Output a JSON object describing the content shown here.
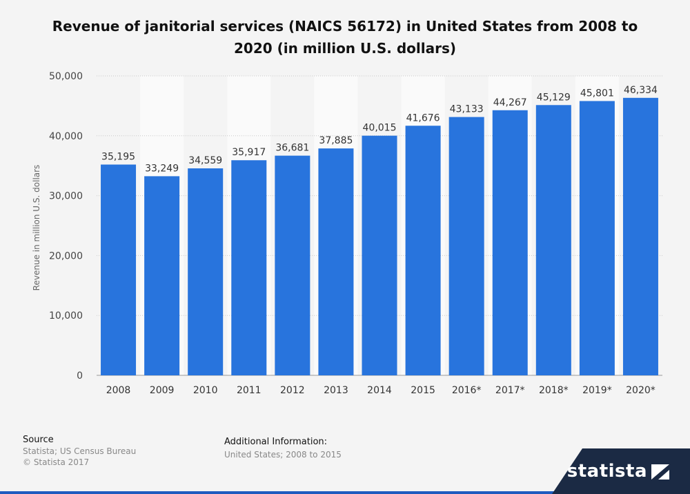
{
  "chart_data": {
    "type": "bar",
    "title": "Revenue of janitorial services (NAICS 56172) in United States from 2008 to 2020 (in million U.S. dollars)",
    "ylabel": "Revenue in million U.S. dollars",
    "xlabel": "",
    "categories": [
      "2008",
      "2009",
      "2010",
      "2011",
      "2012",
      "2013",
      "2014",
      "2015",
      "2016*",
      "2017*",
      "2018*",
      "2019*",
      "2020*"
    ],
    "values": [
      35195,
      33249,
      34559,
      35917,
      36681,
      37885,
      40015,
      41676,
      43133,
      44267,
      45129,
      45801,
      46334
    ],
    "value_labels": [
      "35,195",
      "33,249",
      "34,559",
      "35,917",
      "36,681",
      "37,885",
      "40,015",
      "41,676",
      "43,133",
      "44,267",
      "45,129",
      "45,801",
      "46,334"
    ],
    "ylim": [
      0,
      50000
    ],
    "yticks": [
      0,
      10000,
      20000,
      30000,
      40000,
      50000
    ],
    "ytick_labels": [
      "0",
      "10,000",
      "20,000",
      "30,000",
      "40,000",
      "50,000"
    ],
    "grid": true,
    "bar_color": "#2874dd"
  },
  "footer": {
    "source_label": "Source",
    "source_lines": [
      "Statista; US Census Bureau",
      "© Statista 2017"
    ],
    "additional_label": "Additional Information:",
    "additional_text": "United States; 2008 to 2015"
  },
  "brand": {
    "name": "statista"
  }
}
